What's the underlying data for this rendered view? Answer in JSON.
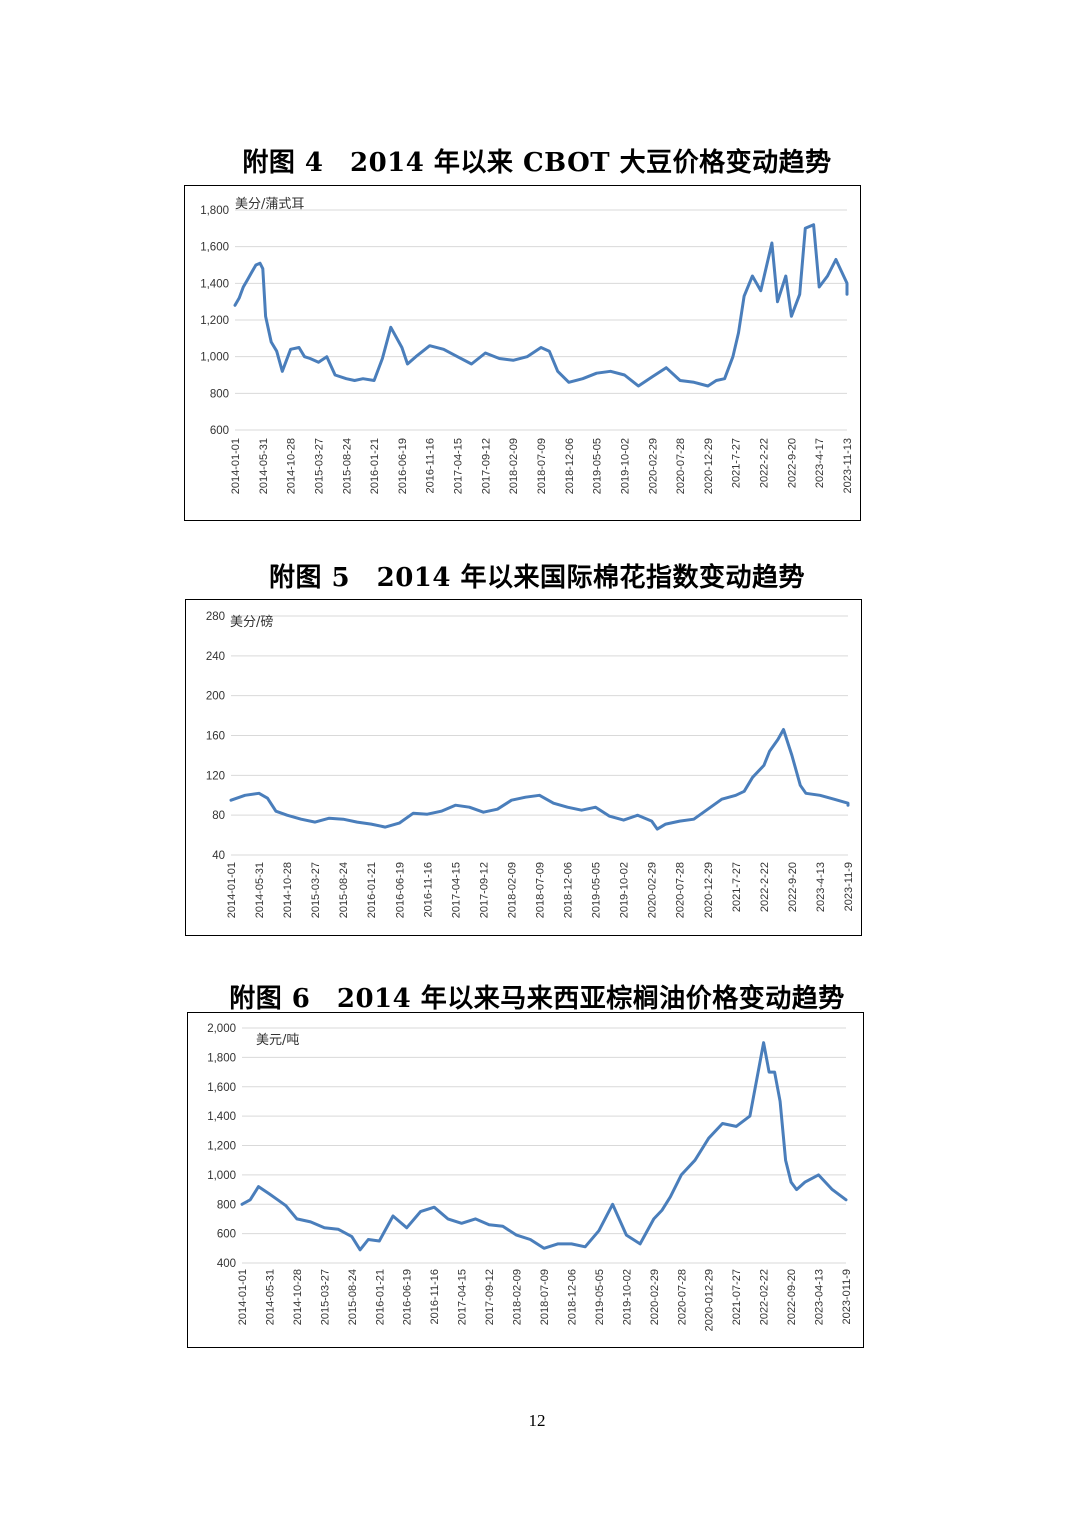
{
  "page_number": "12",
  "line_color": "#4a7ebb",
  "chart_data": [
    {
      "type": "line",
      "title": "附图 4　2014 年以来 CBOT 大豆价格变动趋势",
      "unit_label": "美分/蒲式耳",
      "ylim": [
        600,
        1800
      ],
      "yticks": [
        "600",
        "800",
        "1,000",
        "1,200",
        "1,400",
        "1,600",
        "1,800"
      ],
      "ytick_values": [
        600,
        800,
        1000,
        1200,
        1400,
        1600,
        1800
      ],
      "grid": true,
      "xticks": [
        "2014-01-01",
        "2014-05-31",
        "2014-10-28",
        "2015-03-27",
        "2015-08-24",
        "2016-01-21",
        "2016-06-19",
        "2016-11-16",
        "2017-04-15",
        "2017-09-12",
        "2018-02-09",
        "2018-07-09",
        "2018-12-06",
        "2019-05-05",
        "2019-10-02",
        "2020-02-29",
        "2020-07-28",
        "2020-12-29",
        "2021-7-27",
        "2022-2-22",
        "2022-9-20",
        "2023-4-17",
        "2023-11-13"
      ],
      "series": [
        {
          "x": [
            0,
            0.15,
            0.3,
            0.45,
            0.6,
            0.75,
            0.9,
            1,
            1.1,
            1.3,
            1.5,
            1.7,
            2,
            2.3,
            2.5,
            2.7,
            3,
            3.3,
            3.6,
            4,
            4.3,
            4.6,
            5,
            5.3,
            5.6,
            6,
            6.2,
            6.5,
            7,
            7.5,
            8,
            8.5,
            9,
            9.5,
            10,
            10.5,
            11,
            11.3,
            11.6,
            12,
            12.5,
            13,
            13.5,
            14,
            14.5,
            15,
            15.5,
            16,
            16.5,
            17,
            17.3,
            17.6,
            17.9,
            18.1,
            18.3,
            18.6,
            18.9,
            19.3,
            19.5,
            19.8,
            20,
            20.3,
            20.5,
            20.8,
            21,
            21.3,
            21.6,
            22,
            22
          ],
          "values": [
            1280,
            1320,
            1380,
            1420,
            1460,
            1500,
            1510,
            1480,
            1220,
            1080,
            1030,
            920,
            1040,
            1050,
            1000,
            990,
            970,
            1000,
            900,
            880,
            870,
            880,
            870,
            990,
            1160,
            1050,
            960,
            1000,
            1060,
            1040,
            1000,
            960,
            1020,
            990,
            980,
            1000,
            1050,
            1030,
            920,
            860,
            880,
            910,
            920,
            900,
            840,
            890,
            940,
            870,
            860,
            840,
            870,
            880,
            1000,
            1130,
            1330,
            1440,
            1360,
            1620,
            1300,
            1440,
            1220,
            1340,
            1700,
            1720,
            1380,
            1440,
            1530,
            1400,
            1340
          ]
        }
      ]
    },
    {
      "type": "line",
      "title": "附图 5　2014 年以来国际棉花指数变动趋势",
      "unit_label": "美分/磅",
      "ylim": [
        40,
        280
      ],
      "yticks": [
        "40",
        "80",
        "120",
        "160",
        "200",
        "240",
        "280"
      ],
      "ytick_values": [
        40,
        80,
        120,
        160,
        200,
        240,
        280
      ],
      "grid": true,
      "xticks": [
        "2014-01-01",
        "2014-05-31",
        "2014-10-28",
        "2015-03-27",
        "2015-08-24",
        "2016-01-21",
        "2016-06-19",
        "2016-11-16",
        "2017-04-15",
        "2017-09-12",
        "2018-02-09",
        "2018-07-09",
        "2018-12-06",
        "2019-05-05",
        "2019-10-02",
        "2020-02-29",
        "2020-07-28",
        "2020-12-29",
        "2021-7-27",
        "2022-2-22",
        "2022-9-20",
        "2023-4-13",
        "2023-11-9"
      ],
      "series": [
        {
          "x": [
            0,
            0.5,
            1,
            1.3,
            1.6,
            2,
            2.5,
            3,
            3.5,
            4,
            4.5,
            5,
            5.5,
            6,
            6.5,
            7,
            7.5,
            8,
            8.5,
            9,
            9.5,
            10,
            10.5,
            11,
            11.5,
            12,
            12.5,
            13,
            13.5,
            14,
            14.5,
            15,
            15.2,
            15.5,
            16,
            16.5,
            17,
            17.5,
            18,
            18.3,
            18.6,
            19,
            19.2,
            19.5,
            19.7,
            20,
            20.3,
            20.5,
            21,
            21.5,
            22,
            22
          ],
          "values": [
            95,
            100,
            102,
            97,
            84,
            80,
            76,
            73,
            77,
            76,
            73,
            71,
            68,
            72,
            82,
            81,
            84,
            90,
            88,
            83,
            86,
            95,
            98,
            100,
            92,
            88,
            85,
            88,
            79,
            75,
            80,
            74,
            66,
            71,
            74,
            76,
            86,
            96,
            100,
            104,
            118,
            130,
            144,
            156,
            166,
            140,
            110,
            102,
            100,
            96,
            92,
            90
          ]
        }
      ]
    },
    {
      "type": "line",
      "title": "附图 6　2014 年以来马来西亚棕榈油价格变动趋势",
      "unit_label": "美元/吨",
      "ylim": [
        400,
        2000
      ],
      "yticks": [
        "400",
        "600",
        "800",
        "1,000",
        "1,200",
        "1,400",
        "1,600",
        "1,800",
        "2,000"
      ],
      "ytick_values": [
        400,
        600,
        800,
        1000,
        1200,
        1400,
        1600,
        1800,
        2000
      ],
      "grid": true,
      "xticks": [
        "2014-01-01",
        "2014-05-31",
        "2014-10-28",
        "2015-03-27",
        "2015-08-24",
        "2016-01-21",
        "2016-06-19",
        "2016-11-16",
        "2017-04-15",
        "2017-09-12",
        "2018-02-09",
        "2018-07-09",
        "2018-12-06",
        "2019-05-05",
        "2019-10-02",
        "2020-02-29",
        "2020-07-28",
        "2020-012-29",
        "2021-07-27",
        "2022-02-22",
        "2022-09-20",
        "2023-04-13",
        "2023-011-9"
      ],
      "series": [
        {
          "x": [
            0,
            0.3,
            0.6,
            1,
            1.3,
            1.6,
            2,
            2.5,
            3,
            3.5,
            4,
            4.3,
            4.6,
            5,
            5.5,
            6,
            6.5,
            7,
            7.5,
            8,
            8.5,
            9,
            9.5,
            10,
            10.5,
            11,
            11.5,
            12,
            12.5,
            13,
            13.5,
            14,
            14.5,
            15,
            15.3,
            15.6,
            16,
            16.5,
            17,
            17.5,
            18,
            18.5,
            19,
            19.2,
            19.4,
            19.6,
            19.8,
            20,
            20.2,
            20.5,
            21,
            21.5,
            22,
            22
          ],
          "values": [
            800,
            830,
            920,
            870,
            830,
            790,
            700,
            680,
            640,
            630,
            580,
            490,
            560,
            550,
            720,
            640,
            750,
            780,
            700,
            670,
            700,
            660,
            650,
            590,
            560,
            500,
            530,
            530,
            510,
            620,
            800,
            590,
            530,
            700,
            760,
            850,
            1000,
            1100,
            1250,
            1350,
            1330,
            1400,
            1900,
            1700,
            1700,
            1500,
            1100,
            950,
            900,
            950,
            1000,
            900,
            830,
            830
          ]
        }
      ]
    }
  ]
}
